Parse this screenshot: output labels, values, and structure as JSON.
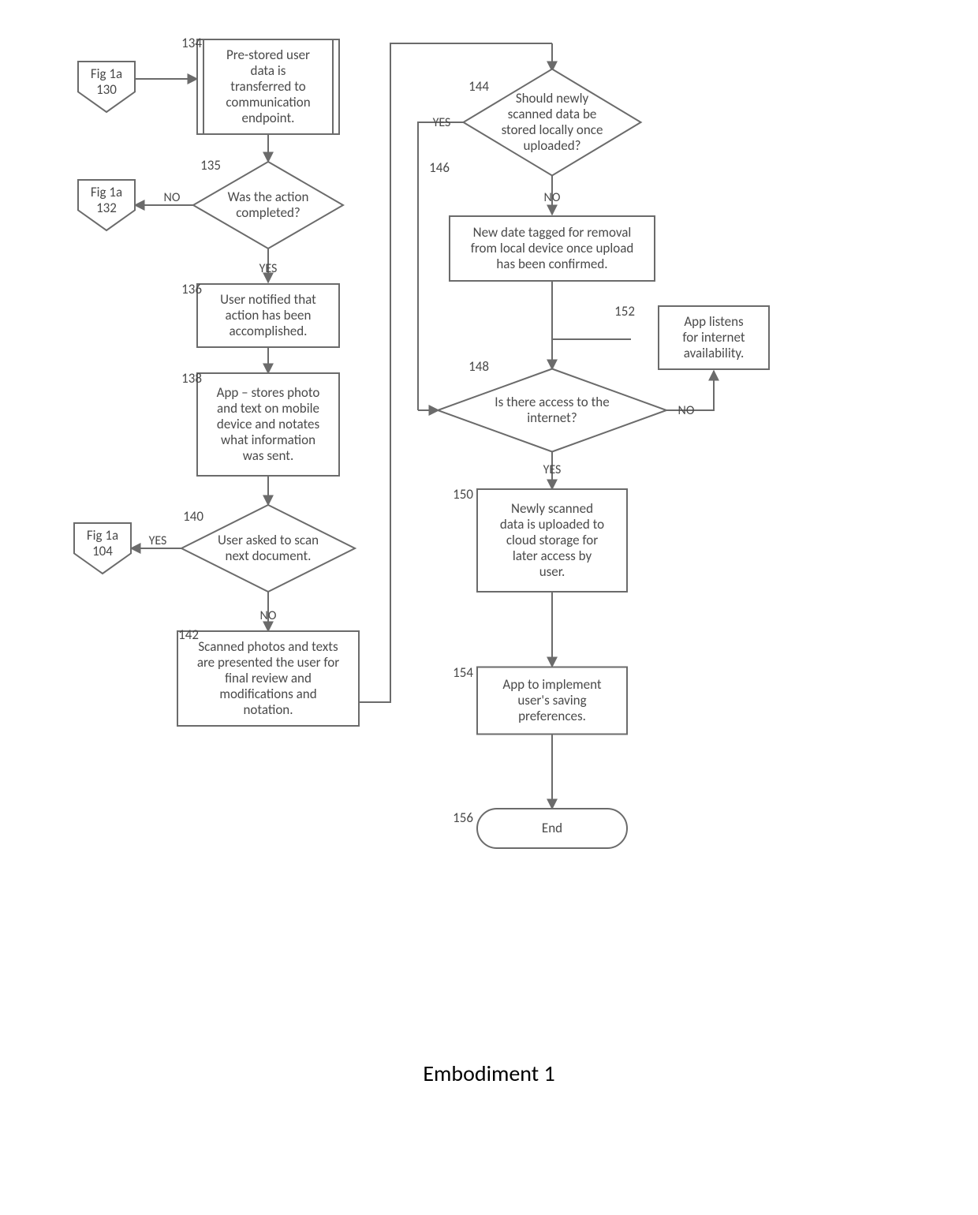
{
  "type": "flowchart",
  "caption": "Embodiment 1",
  "colors": {
    "stroke": "#6b6b6b",
    "text": "#4a4a4a",
    "fill": "#ffffff",
    "bg": "#ffffff"
  },
  "stroke_width": 2,
  "font_family": "Calibri, Arial, sans-serif",
  "font_size_box": 17,
  "font_size_caption": 28,
  "nodes": {
    "n134": {
      "num": "134",
      "lines": [
        "Pre-stored user",
        "data is",
        "transferred to",
        "communication",
        "endpoint."
      ]
    },
    "n135": {
      "num": "135",
      "lines": [
        "Was the action",
        "completed?"
      ]
    },
    "n136": {
      "num": "136",
      "lines": [
        "User notified that",
        "action has been",
        "accomplished."
      ]
    },
    "n138": {
      "num": "138",
      "lines": [
        "App – stores photo",
        "and text on mobile",
        "device and notates",
        "what information",
        "was sent."
      ]
    },
    "n140": {
      "num": "140",
      "lines": [
        "User asked to scan",
        "next document."
      ]
    },
    "n142": {
      "num": "142",
      "lines": [
        "Scanned photos and texts",
        "are presented the user for",
        "final review and",
        "modifications and",
        "notation."
      ]
    },
    "n144": {
      "num": "144",
      "lines": [
        "Should newly",
        "scanned data be",
        "stored locally once",
        "uploaded?"
      ]
    },
    "n146": {
      "num": "146",
      "lines": [
        "New date tagged for removal",
        "from local device once upload",
        "has been confirmed."
      ]
    },
    "n148": {
      "num": "148",
      "lines": [
        "Is there access to the",
        "internet?"
      ]
    },
    "n150": {
      "num": "150",
      "lines": [
        "Newly scanned",
        "data is uploaded to",
        "cloud storage for",
        "later access by",
        "user."
      ]
    },
    "n152": {
      "num": "152",
      "lines": [
        "App listens",
        "for internet",
        "availability."
      ]
    },
    "n154": {
      "num": "154",
      "lines": [
        "App to implement",
        "user's saving",
        "preferences."
      ]
    },
    "n156": {
      "num": "156",
      "lines": [
        "End"
      ]
    },
    "c130": {
      "num": "",
      "lines": [
        "Fig 1a",
        "130"
      ]
    },
    "c132": {
      "num": "",
      "lines": [
        "Fig 1a",
        "132"
      ]
    },
    "c104": {
      "num": "",
      "lines": [
        "Fig 1a",
        "104"
      ]
    }
  },
  "edge_labels": {
    "yesL": "YES",
    "noL": "NO"
  }
}
